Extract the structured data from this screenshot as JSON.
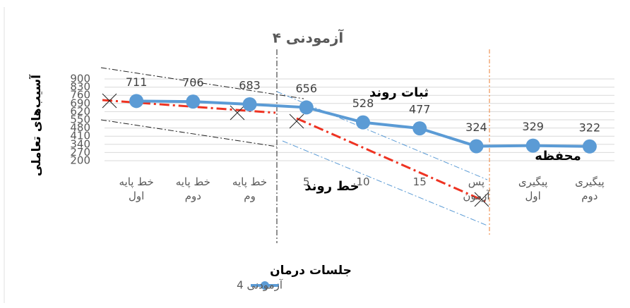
{
  "chart_data": {
    "type": "line",
    "title": "آزمودنی ۴",
    "y_label": "آسیب‌های تعاملی",
    "x_label": "جلسات درمان",
    "categories": [
      "خط پایه اول",
      "خط پایه دوم",
      "خط پایه وم",
      "5",
      "10",
      "15",
      "پس آزمون",
      "پیگیری اول",
      "پیگیری دوم"
    ],
    "series": [
      {
        "name": "آزمودنی 4",
        "color": "#5b9bd5",
        "values": [
          711,
          706,
          683,
          656,
          528,
          477,
          324,
          329,
          322
        ]
      }
    ],
    "ylim": [
      200,
      900
    ],
    "yticks": [
      200,
      270,
      340,
      410,
      480,
      550,
      620,
      690,
      760,
      830,
      900
    ],
    "grid": true,
    "annotations": [
      "ثبات روند",
      "خط روند",
      "محفظه"
    ]
  }
}
